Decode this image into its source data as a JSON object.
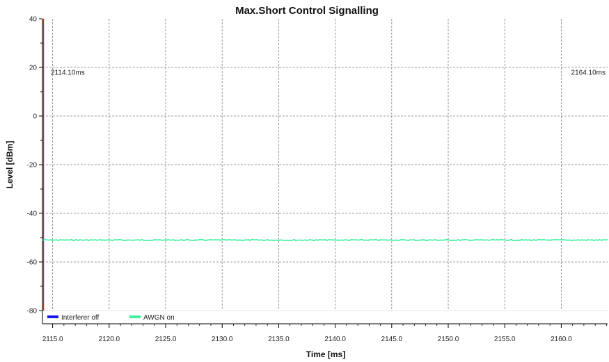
{
  "chart_data": {
    "type": "line",
    "title": "Max.Short Control Signalling",
    "xlabel": "Time [ms]",
    "ylabel": "Level [dBm]",
    "xlim": [
      2114.1,
      2164.1
    ],
    "ylim": [
      -80,
      40
    ],
    "x_ticks": [
      "2115.0",
      "2120.0",
      "2125.0",
      "2130.0",
      "2135.0",
      "2140.0",
      "2145.0",
      "2150.0",
      "2155.0",
      "2160.0"
    ],
    "y_ticks": [
      "40",
      "20",
      "0",
      "-20",
      "-40",
      "-60",
      "-80"
    ],
    "grid": true,
    "annotations": [
      {
        "text": "2114.10ms",
        "x": 2114.1,
        "y": 17
      },
      {
        "text": "2164.10ms",
        "x": 2164.1,
        "y": 17
      }
    ],
    "markers": [
      {
        "x": 2114.1,
        "color": "#e02020"
      }
    ],
    "series": [
      {
        "name": "Interferer off",
        "color": "#1a1ae6",
        "x": [],
        "values": []
      },
      {
        "name": "AWGN on",
        "color": "#3cf0a0",
        "x": [
          2114.1,
          2120.0,
          2130.0,
          2140.0,
          2150.0,
          2160.0,
          2164.1
        ],
        "values": [
          -51,
          -51,
          -51,
          -51,
          -51,
          -51,
          -51
        ]
      }
    ],
    "legend_placement": "bottom-left"
  }
}
